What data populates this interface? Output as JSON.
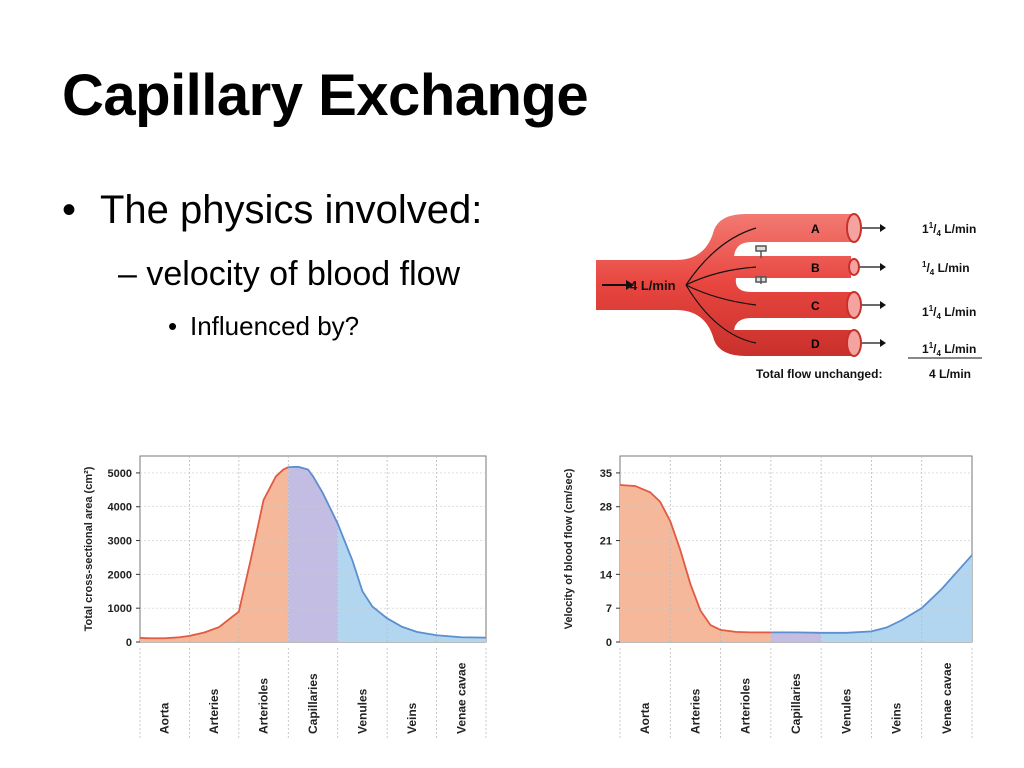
{
  "slide": {
    "title": "Capillary Exchange",
    "bullets": {
      "level1": "The physics involved:",
      "level2": "velocity of blood flow",
      "level3": "Influenced by?"
    }
  },
  "flow_diagram": {
    "input": "4 L/min",
    "branches": [
      {
        "label": "A",
        "whole": "1",
        "num": "1",
        "den": "4",
        "unit": "L/min"
      },
      {
        "label": "B",
        "whole": "",
        "num": "1",
        "den": "4",
        "unit": "L/min"
      },
      {
        "label": "C",
        "whole": "1",
        "num": "1",
        "den": "4",
        "unit": "L/min"
      },
      {
        "label": "D",
        "whole": "1",
        "num": "1",
        "den": "4",
        "unit": "L/min"
      }
    ],
    "total_label": "Total flow unchanged:",
    "total_value": "4 L/min",
    "colors": {
      "vessel": "#e8504a",
      "vessel_light": "#f5a3a0",
      "arrow": "#111111"
    }
  },
  "chart_data": [
    {
      "type": "area",
      "ylabel": "Total cross-sectional area (cm²)",
      "xlabel": "",
      "ylim": [
        0,
        5500
      ],
      "yticks": [
        0,
        1000,
        2000,
        3000,
        4000,
        5000
      ],
      "categories": [
        "Aorta",
        "Arteries",
        "Arterioles",
        "Capillaries",
        "Venules",
        "Veins",
        "Venae cavae"
      ],
      "x": [
        0,
        0.2,
        0.5,
        0.8,
        1.0,
        1.3,
        1.6,
        2.0,
        2.25,
        2.5,
        2.75,
        2.9,
        3.0,
        3.2,
        3.4,
        3.5,
        3.7,
        4.0,
        4.3,
        4.5,
        4.7,
        5.0,
        5.3,
        5.6,
        6.0,
        6.5,
        7.0
      ],
      "values": [
        120,
        110,
        110,
        140,
        180,
        280,
        440,
        900,
        2500,
        4200,
        4900,
        5100,
        5170,
        5180,
        5100,
        4900,
        4400,
        3500,
        2400,
        1500,
        1050,
        700,
        450,
        300,
        200,
        140,
        130
      ],
      "segments": [
        {
          "from": 0,
          "to": 3,
          "color": "#f6b89a"
        },
        {
          "from": 3,
          "to": 4,
          "color": "#c3bde3"
        },
        {
          "from": 4,
          "to": 7,
          "color": "#b3d6f0"
        }
      ],
      "line_colors": {
        "arterial": "#e25a42",
        "venous": "#5b8fce"
      },
      "grid": true
    },
    {
      "type": "area",
      "ylabel": "Velocity of blood flow (cm/sec)",
      "xlabel": "",
      "ylim": [
        0,
        38.5
      ],
      "yticks": [
        0,
        7,
        14,
        21,
        28,
        35
      ],
      "categories": [
        "Aorta",
        "Arteries",
        "Arterioles",
        "Capillaries",
        "Venules",
        "Veins",
        "Venae cavae"
      ],
      "x": [
        0,
        0.3,
        0.6,
        0.8,
        1.0,
        1.2,
        1.4,
        1.6,
        1.8,
        2.0,
        2.3,
        2.6,
        3.0,
        3.5,
        4.0,
        4.5,
        5.0,
        5.3,
        5.6,
        6.0,
        6.4,
        6.7,
        7.0
      ],
      "values": [
        32.5,
        32.3,
        31.0,
        29.0,
        25.0,
        19.0,
        12.0,
        6.5,
        3.5,
        2.5,
        2.1,
        2.0,
        2.0,
        2.0,
        1.9,
        1.9,
        2.2,
        3.0,
        4.5,
        7.0,
        11.0,
        14.5,
        18.0
      ],
      "segments": [
        {
          "from": 0,
          "to": 3,
          "color": "#f6b89a"
        },
        {
          "from": 3,
          "to": 4,
          "color": "#c3bde3"
        },
        {
          "from": 4,
          "to": 7,
          "color": "#b3d6f0"
        }
      ],
      "line_colors": {
        "arterial": "#e25a42",
        "venous": "#5b8fce"
      },
      "grid": true
    }
  ]
}
